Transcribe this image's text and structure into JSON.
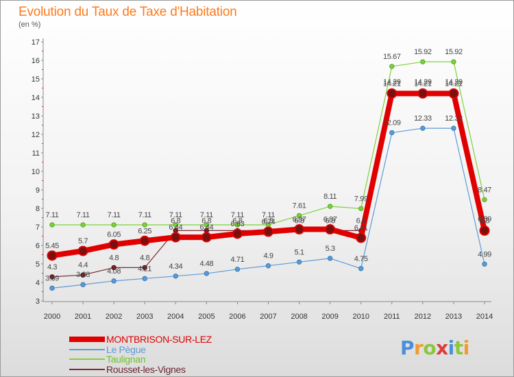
{
  "title": "Evolution du Taux de Taxe d'Habitation",
  "subtitle": "(en %)",
  "logo": {
    "text": "Proxiti"
  },
  "colors": {
    "title": "#ff7a1a",
    "background_top": "#ffffff",
    "background_bottom": "#dcdcdc"
  },
  "chart_data": {
    "type": "line",
    "title": "Evolution du Taux de Taxe d'Habitation",
    "subtitle": "(en %)",
    "xlabel": "",
    "ylabel": "(en %)",
    "ylim": [
      3,
      17
    ],
    "yticks": [
      3,
      4,
      5,
      6,
      7,
      8,
      9,
      10,
      11,
      12,
      13,
      14,
      15,
      16,
      17
    ],
    "grid": false,
    "legend_position": "bottom-left",
    "x": [
      "2000",
      "2001",
      "2002",
      "2003",
      "2004",
      "2005",
      "2006",
      "2007",
      "2008",
      "2009",
      "2010",
      "2011",
      "2012",
      "2013",
      "2014"
    ],
    "series": [
      {
        "name": "Taulignan",
        "color": "#7dd13a",
        "values": [
          7.11,
          7.11,
          7.11,
          7.11,
          7.11,
          7.11,
          7.11,
          7.11,
          7.61,
          8.11,
          7.99,
          15.67,
          15.92,
          15.92,
          8.47
        ],
        "labels": [
          "7.11",
          "7.11",
          "7.11",
          "7.11",
          "7.11",
          "7.11",
          "7.11",
          "7.11",
          "7.61",
          "8.11",
          "7.99",
          "15.67",
          "15.92",
          "15.92",
          "8.47"
        ]
      },
      {
        "name": "Le Pègue",
        "color": "#5b9bd5",
        "values": [
          3.69,
          3.88,
          4.08,
          4.21,
          4.34,
          4.48,
          4.71,
          4.9,
          5.1,
          5.3,
          4.75,
          12.09,
          12.33,
          12.33,
          4.99
        ],
        "labels": [
          "3.69",
          "3.88",
          "4.08",
          "4.21",
          "4.34",
          "4.48",
          "4.71",
          "4.9",
          "5.1",
          "5.3",
          "4.75",
          "12.09",
          "12.33",
          "12.33",
          "4.99"
        ]
      },
      {
        "name": "Rousset-les-Vignes",
        "color": "#7b2a32",
        "values": [
          4.3,
          4.4,
          4.8,
          4.8,
          6.8,
          6.8,
          6.8,
          6.8,
          6.8,
          6.8,
          6.8,
          14.29,
          14.29,
          14.29,
          6.89
        ],
        "labels": [
          "4.3",
          "4.4",
          "4.8",
          "4.8",
          "6.8",
          "6.8",
          "6.8",
          "6.8",
          "6.8",
          "6.8",
          "6.8",
          "14.29",
          "14.29",
          "14.29",
          "6.89"
        ]
      },
      {
        "name": "MONTBRISON-SUR-LEZ",
        "color": "#e00000",
        "values": [
          5.45,
          5.7,
          6.05,
          6.25,
          6.44,
          6.44,
          6.63,
          6.74,
          6.87,
          6.87,
          6.41,
          14.21,
          14.21,
          14.21,
          6.8
        ],
        "labels": [
          "5.45",
          "5.7",
          "6.05",
          "6.25",
          "6.44",
          "6.44",
          "6.63",
          "6.74",
          "6.87",
          "6.87",
          "6.41",
          "14.21",
          "14.21",
          "14.21",
          "6.8"
        ]
      }
    ],
    "legend_order": [
      "MONTBRISON-SUR-LEZ",
      "Le Pègue",
      "Taulignan",
      "Rousset-les-Vignes"
    ]
  }
}
